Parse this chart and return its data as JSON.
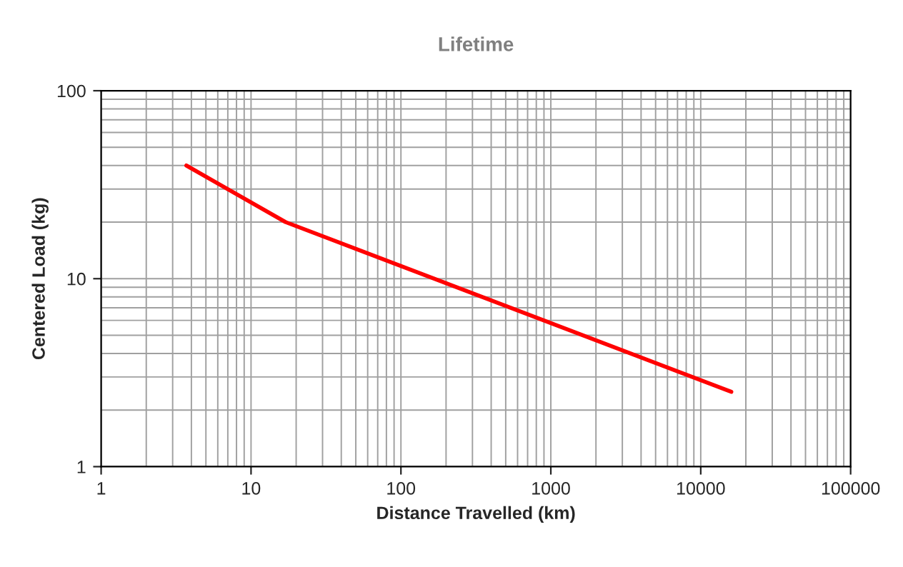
{
  "chart_data": {
    "type": "line",
    "title": "Lifetime",
    "xlabel": "Distance Travelled (km)",
    "ylabel": "Centered Load (kg)",
    "log": "xy",
    "grid": true,
    "legend": false,
    "marker": "none",
    "line_style": "solid",
    "xlim": [
      1,
      100000
    ],
    "ylim": [
      1,
      100
    ],
    "xticks": [
      1,
      10,
      100,
      1000,
      10000,
      100000
    ],
    "yticks": [
      1,
      10,
      100
    ],
    "series": [
      {
        "color": "#ff0000",
        "x": [
          3.7,
          17,
          16000
        ],
        "values": [
          40,
          20,
          2.5
        ]
      }
    ]
  }
}
